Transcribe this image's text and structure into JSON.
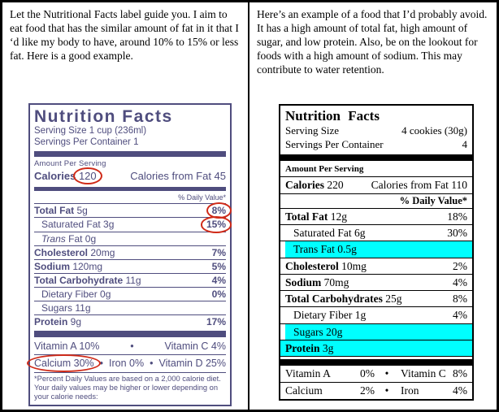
{
  "colors": {
    "accent_purple": "#4f4d7e",
    "annotation_red": "#cf2a18",
    "highlight_cyan": "#00ffff"
  },
  "bullet": "•",
  "left_column": {
    "paragraph": "Let the Nutritional Facts label guide you.  I aim to eat food that has the similar amount of fat in it that I ‘d like my body to have, around 10% to 15% or less fat.  Here is a good example.",
    "label": {
      "title": "Nutrition Facts",
      "serving_size": "Serving Size 1 cup (236ml)",
      "servings_per_container": "Servings Per Container 1",
      "amount_per_serving": "Amount Per Serving",
      "calories_word": "Calories",
      "calories_value": "120",
      "calories_from_fat": "Calories from Fat 45",
      "daily_value_note": "% Daily Value*",
      "rows": [
        {
          "b": "Total Fat",
          "t": " 5g",
          "dv": "8%",
          "circled": true
        },
        {
          "t": "Saturated Fat 3g",
          "dv": "15%",
          "indent": true,
          "circled": true
        },
        {
          "i": "Trans",
          "t": " Fat 0g",
          "dv": "",
          "indent": true
        },
        {
          "b": "Cholesterol",
          "t": " 20mg",
          "dv": "7%"
        },
        {
          "b": "Sodium",
          "t": " 120mg",
          "dv": "5%"
        },
        {
          "b": "Total Carbohydrate",
          "t": " 11g",
          "dv": "4%"
        },
        {
          "t": "Dietary Fiber 0g",
          "dv": "0%",
          "indent": true
        },
        {
          "t": "Sugars 11g",
          "dv": "",
          "indent": true
        },
        {
          "b": "Protein",
          "t": " 9g",
          "dv": "17%"
        }
      ],
      "vitamins_row1_left": "Vitamin A 10%",
      "vitamins_row1_right": "Vitamin C 4%",
      "vitamins_row2_first": "Calcium 30%",
      "vitamins_row2_second": "Iron 0%",
      "vitamins_row2_third": "Vitamin D 25%",
      "footnote": "*Percent Daily Values are based on a 2,000 calorie diet.  Your daily values may be higher or lower depending on your calorie needs:"
    }
  },
  "right_column": {
    "paragraph": "Here’s an example of a food that I’d probably avoid.  It has a high amount of total fat, high amount of sugar, and low protein. Also, be on the lookout for foods with a high amount of sodium.  This may contribute to water retention.",
    "label": {
      "title": "Nutrition Facts",
      "serving_size_label": "Serving Size",
      "serving_size_value": "4 cookies (30g)",
      "servings_label": "Servings Per Container",
      "servings_value": "4",
      "amount_per_serving": "Amount Per Serving",
      "calories_word": "Calories",
      "calories_value": " 220",
      "calories_from_fat": "Calories from Fat 110",
      "daily_value_note": "% Daily Value*",
      "rows": [
        {
          "b": "Total Fat",
          "t": " 12g",
          "dv": "18%"
        },
        {
          "t": "Saturated Fat 6g",
          "dv": "30%",
          "indent": true
        },
        {
          "t": "Trans Fat 0.5g",
          "dv": "",
          "indent": true,
          "highlight": true
        },
        {
          "b": "Cholesterol",
          "t": " 10mg",
          "dv": "2%"
        },
        {
          "b": "Sodium",
          "t": " 70mg",
          "dv": "4%"
        },
        {
          "b": "Total Carbohydrates",
          "t": " 25g",
          "dv": "8%"
        },
        {
          "t": "Dietary Fiber 1g",
          "dv": "4%",
          "indent": true
        },
        {
          "t": "Sugars 20g",
          "dv": "",
          "indent": true,
          "highlight": true
        },
        {
          "b": "Protein",
          "t": " 3g",
          "dv": "",
          "highlight": true
        }
      ],
      "vitamin_rows": [
        {
          "a": "Vitamin A",
          "a_pct": "0%",
          "b": "Vitamin C",
          "b_pct": "8%"
        },
        {
          "a": "Calcium",
          "a_pct": "2%",
          "b": "Iron",
          "b_pct": "4%"
        }
      ]
    }
  }
}
